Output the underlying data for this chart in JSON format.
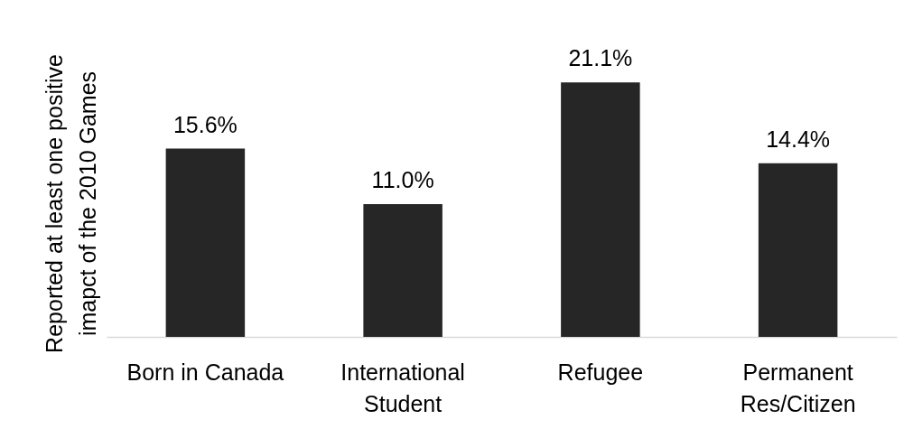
{
  "chart_data": {
    "type": "bar",
    "ylabel": "Reported at least one positive imapct of the 2010 Games",
    "categories": [
      "Born in Canada",
      "International Student",
      "Refugee",
      "Permanent Res/Citizen"
    ],
    "values": [
      15.6,
      11.0,
      21.1,
      14.4
    ],
    "color": "#262626",
    "value_labels": [
      "15.6%",
      "11.0%",
      "21.1%",
      "14.4%"
    ],
    "tick_labels": "x"
  }
}
